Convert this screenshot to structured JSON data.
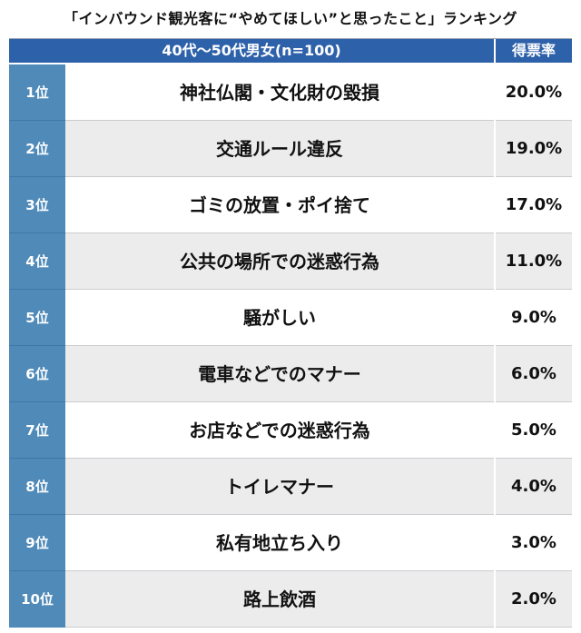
{
  "title": "「インバウンド観光客に“やめてほしい”と思ったこと」ランキング",
  "header": {
    "group": "40代〜50代男女(n=100)",
    "vote_label": "得票率"
  },
  "chart_data": {
    "type": "table",
    "title": "「インバウンド観光客に“やめてほしい”と思ったこと」ランキング",
    "columns": [
      "",
      "40代〜50代男女(n=100)",
      "得票率"
    ],
    "rows": [
      {
        "rank": "1位",
        "item": "神社仏閣・文化財の毀損",
        "value": "20.0%"
      },
      {
        "rank": "2位",
        "item": "交通ルール違反",
        "value": "19.0%"
      },
      {
        "rank": "3位",
        "item": "ゴミの放置・ポイ捨て",
        "value": "17.0%"
      },
      {
        "rank": "4位",
        "item": "公共の場所での迷惑行為",
        "value": "11.0%"
      },
      {
        "rank": "5位",
        "item": "騒がしい",
        "value": "9.0%"
      },
      {
        "rank": "6位",
        "item": "電車などでのマナー",
        "value": "6.0%"
      },
      {
        "rank": "7位",
        "item": "お店などでの迷惑行為",
        "value": "5.0%"
      },
      {
        "rank": "8位",
        "item": "トイレマナー",
        "value": "4.0%"
      },
      {
        "rank": "9位",
        "item": "私有地立ち入り",
        "value": "3.0%"
      },
      {
        "rank": "10位",
        "item": "路上飲酒",
        "value": "2.0%"
      }
    ]
  }
}
